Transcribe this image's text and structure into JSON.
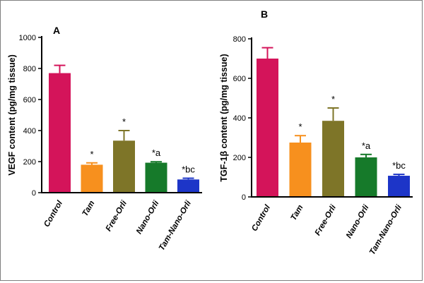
{
  "chart_data": [
    {
      "type": "bar",
      "panel_label": "A",
      "title": "",
      "xlabel": "",
      "ylabel": "VEGF content (pg/mg tissue)",
      "ylim": [
        0,
        1000
      ],
      "yticks": [
        0,
        200,
        400,
        600,
        800,
        1000
      ],
      "categories": [
        "Control",
        "Tam",
        "Free-Orli",
        "Nano-Orli",
        "Tam-Nano-Orli"
      ],
      "values": [
        770,
        180,
        335,
        193,
        85
      ],
      "errors": [
        50,
        12,
        65,
        6,
        8
      ],
      "annotations": [
        "",
        "*",
        "*",
        "*a",
        "*bc"
      ],
      "colors": [
        "#d4145a",
        "#f7901e",
        "#7e7528",
        "#167a2a",
        "#1d35c8"
      ]
    },
    {
      "type": "bar",
      "panel_label": "B",
      "title": "",
      "xlabel": "",
      "ylabel": "TGF-1β content (pg/mg tissue)",
      "ylim": [
        0,
        800
      ],
      "yticks": [
        0,
        200,
        400,
        600,
        800
      ],
      "categories": [
        "Control",
        "Tam",
        "Free-Orli",
        "Nano-Orli",
        "Tam-Nano-Orli"
      ],
      "values": [
        700,
        275,
        385,
        200,
        107
      ],
      "errors": [
        55,
        35,
        65,
        15,
        7
      ],
      "annotations": [
        "",
        "*",
        "*",
        "*a",
        "*bc"
      ],
      "colors": [
        "#d4145a",
        "#f7901e",
        "#7e7528",
        "#167a2a",
        "#1d35c8"
      ]
    }
  ]
}
